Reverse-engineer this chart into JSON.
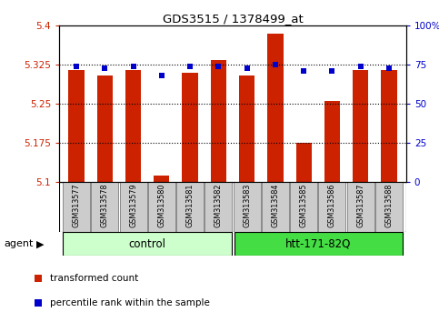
{
  "title": "GDS3515 / 1378499_at",
  "samples": [
    "GSM313577",
    "GSM313578",
    "GSM313579",
    "GSM313580",
    "GSM313581",
    "GSM313582",
    "GSM313583",
    "GSM313584",
    "GSM313585",
    "GSM313586",
    "GSM313587",
    "GSM313588"
  ],
  "red_values": [
    5.315,
    5.305,
    5.315,
    5.112,
    5.31,
    5.335,
    5.305,
    5.385,
    5.175,
    5.255,
    5.315,
    5.315
  ],
  "blue_values": [
    74,
    73,
    74,
    68,
    74,
    74,
    73,
    75,
    71,
    71,
    74,
    73
  ],
  "y_min": 5.1,
  "y_max": 5.4,
  "y_ticks": [
    5.1,
    5.175,
    5.25,
    5.325,
    5.4
  ],
  "y_tick_labels": [
    "5.1",
    "5.175",
    "5.25",
    "5.325",
    "5.4"
  ],
  "y2_ticks": [
    0,
    25,
    50,
    75,
    100
  ],
  "y2_tick_labels": [
    "0",
    "25",
    "50",
    "75",
    "100%"
  ],
  "hlines": [
    5.175,
    5.25,
    5.325
  ],
  "control_samples": 6,
  "control_label": "control",
  "treatment_label": "htt-171-82Q",
  "agent_label": "agent",
  "legend_red": "transformed count",
  "legend_blue": "percentile rank within the sample",
  "red_color": "#cc2200",
  "blue_color": "#0000cc",
  "bar_width": 0.55,
  "control_bg": "#ccffcc",
  "treatment_bg": "#44dd44",
  "xlabel_bg": "#cccccc",
  "fig_width": 4.83,
  "fig_height": 3.54,
  "fig_dpi": 100
}
